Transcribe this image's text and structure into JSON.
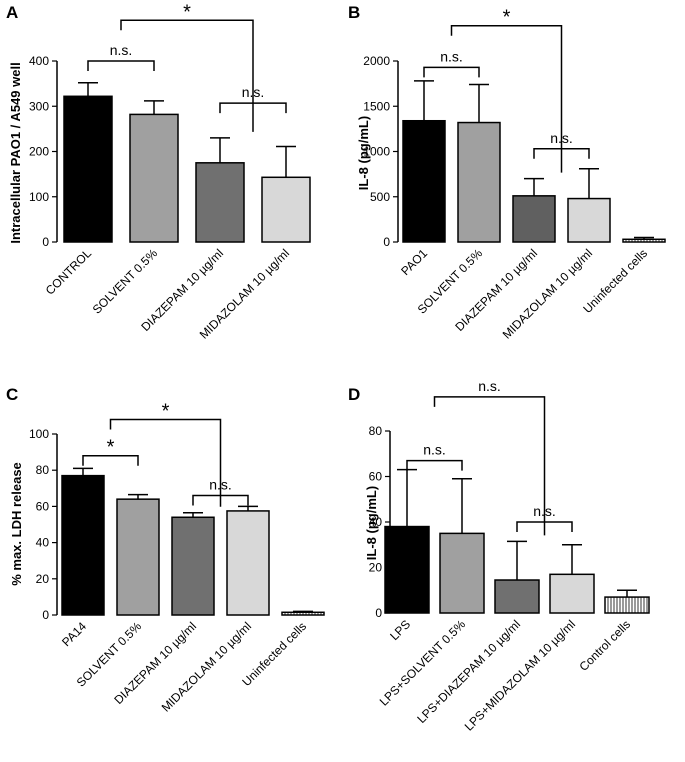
{
  "chart_data": [
    {
      "type": "bar",
      "panel": "A",
      "ylabel": "Intracellular PAO1 / A549 well",
      "ylim": [
        0,
        400
      ],
      "yticks": [
        0,
        100,
        200,
        300,
        400
      ],
      "categories": [
        "CONTROL",
        "SOLVENT 0.5%",
        "DIAZEPAM 10 µg/ml",
        "MIDAZOLAM 10 µg/ml"
      ],
      "values": [
        322,
        282,
        175,
        143
      ],
      "errors": [
        30,
        30,
        55,
        68
      ],
      "colors": [
        "#000000",
        "#a0a0a0",
        "#707070",
        "#d8d8d8"
      ],
      "annotations": [
        {
          "from": 0,
          "to": 1,
          "label": "n.s.",
          "y": 400
        },
        {
          "from": 2,
          "to": 3,
          "label": "n.s.",
          "y": 307
        },
        {
          "from": 0.5,
          "to": 2.5,
          "label": "*",
          "y": 490
        }
      ]
    },
    {
      "type": "bar",
      "panel": "B",
      "ylabel": "IL-8 (pg/mL)",
      "ylim": [
        0,
        2000
      ],
      "yticks": [
        0,
        500,
        1000,
        1500,
        2000
      ],
      "categories": [
        "PAO1",
        "SOLVENT 0.5%",
        "DIAZEPAM 10 µg/ml",
        "MIDAZOLAM 10 µg/ml",
        "Uninfected cells"
      ],
      "values": [
        1340,
        1320,
        510,
        480,
        30
      ],
      "errors": [
        440,
        420,
        190,
        330,
        20
      ],
      "colors": [
        "#000000",
        "#a0a0a0",
        "#606060",
        "#d8d8d8",
        "#ffffff"
      ],
      "annotations": [
        {
          "from": 0,
          "to": 1,
          "label": "n.s.",
          "y": 1930
        },
        {
          "from": 2,
          "to": 3,
          "label": "n.s.",
          "y": 1030
        },
        {
          "from": 0.5,
          "to": 2.5,
          "label": "*",
          "y": 2390
        }
      ]
    },
    {
      "type": "bar",
      "panel": "C",
      "ylabel": "% max. LDH release",
      "ylim": [
        0,
        100
      ],
      "yticks": [
        0,
        20,
        40,
        60,
        80,
        100
      ],
      "categories": [
        "PA14",
        "SOLVENT 0.5%",
        "DIAZEPAM 10 µg/ml",
        "MIDAZOLAM 10 µg/ml",
        "Uninfected cells"
      ],
      "values": [
        77,
        64,
        54,
        57.5,
        1.5
      ],
      "errors": [
        4,
        2.5,
        2.5,
        2.5,
        0.5
      ],
      "colors": [
        "#000000",
        "#a0a0a0",
        "#707070",
        "#d8d8d8",
        "#ffffff"
      ],
      "annotations": [
        {
          "from": 0,
          "to": 1,
          "label": "*",
          "y": 88
        },
        {
          "from": 2,
          "to": 3,
          "label": "n.s.",
          "y": 66
        },
        {
          "from": 0.5,
          "to": 2.5,
          "label": "*",
          "y": 108
        }
      ]
    },
    {
      "type": "bar",
      "panel": "D",
      "ylabel": "IL-8 (pg/mL)",
      "ylim": [
        0,
        80
      ],
      "yticks": [
        0,
        20,
        40,
        60,
        80
      ],
      "categories": [
        "LPS",
        "LPS+SOLVENT 0.5%",
        "LPS+DIAZEPAM 10 µg/ml",
        "LPS+MIDAZOLAM 10 µg/ml",
        "Control cells"
      ],
      "values": [
        38,
        35,
        14.5,
        17,
        7
      ],
      "errors": [
        25,
        24,
        17,
        13,
        3
      ],
      "colors": [
        "#000000",
        "#a0a0a0",
        "#707070",
        "#d8d8d8",
        "#ffffff"
      ],
      "annotations": [
        {
          "from": 0,
          "to": 1,
          "label": "n.s.",
          "y": 67
        },
        {
          "from": 2,
          "to": 3,
          "label": "n.s.",
          "y": 40
        },
        {
          "from": 0.5,
          "to": 2.5,
          "label": "n.s.",
          "y": 95
        }
      ]
    }
  ]
}
